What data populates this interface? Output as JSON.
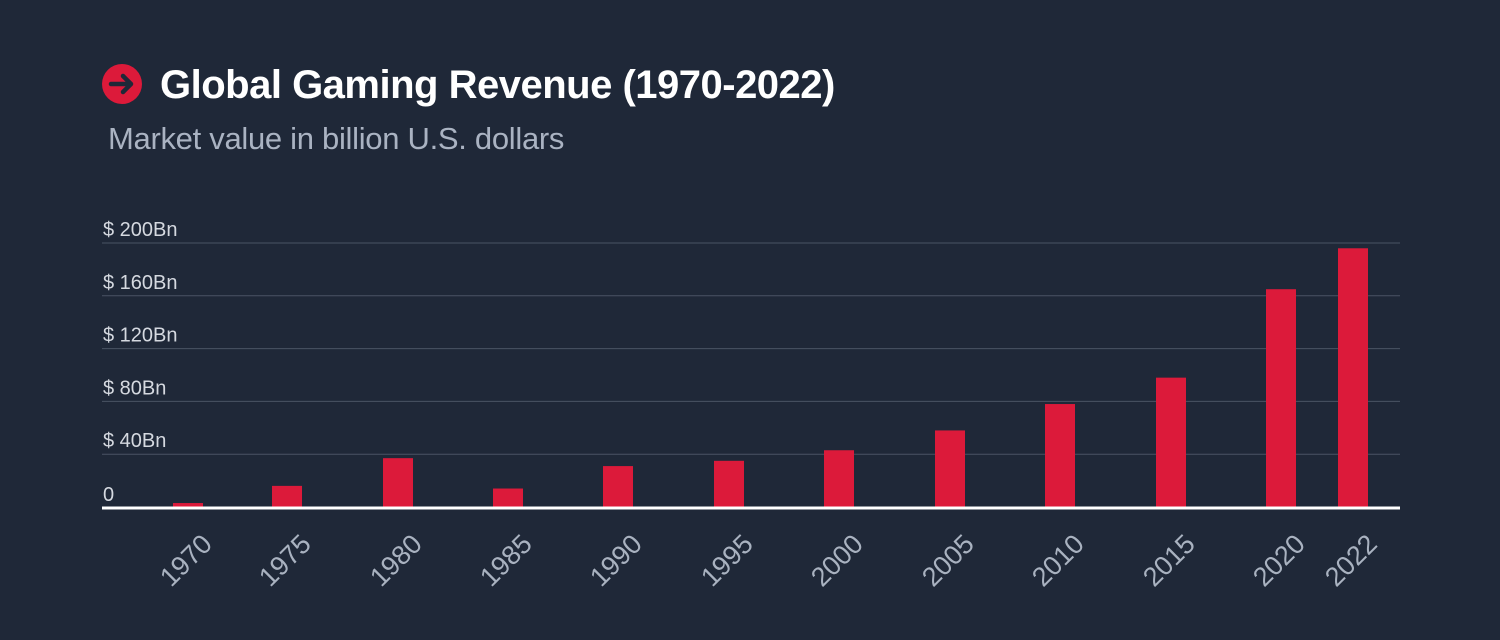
{
  "header": {
    "title": "Global Gaming Revenue (1970-2022)",
    "subtitle": "Market value in billion U.S. dollars",
    "icon": "arrow-right-circle-icon"
  },
  "colors": {
    "background": "#1f2838",
    "bar": "#dc1a3a",
    "grid": "#4a5364",
    "baseline": "#ffffff",
    "title": "#ffffff",
    "subtitle": "#aab3c2"
  },
  "chart_data": {
    "type": "bar",
    "title": "Global Gaming Revenue (1970-2022)",
    "subtitle": "Market value in billion U.S. dollars",
    "xlabel": "",
    "ylabel": "",
    "categories": [
      "1970",
      "1975",
      "1980",
      "1985",
      "1990",
      "1995",
      "2000",
      "2005",
      "2010",
      "2015",
      "2020",
      "2022"
    ],
    "values": [
      3,
      16,
      37,
      14,
      31,
      35,
      43,
      58,
      78,
      98,
      165,
      196
    ],
    "ylim": [
      0,
      200
    ],
    "y_ticks": [
      0,
      40,
      80,
      120,
      160,
      200
    ],
    "y_tick_labels": [
      "0",
      "$ 40Bn",
      "$ 80Bn",
      "$ 120Bn",
      "$ 160Bn",
      "$ 200Bn"
    ],
    "grid": true,
    "legend": "none"
  }
}
